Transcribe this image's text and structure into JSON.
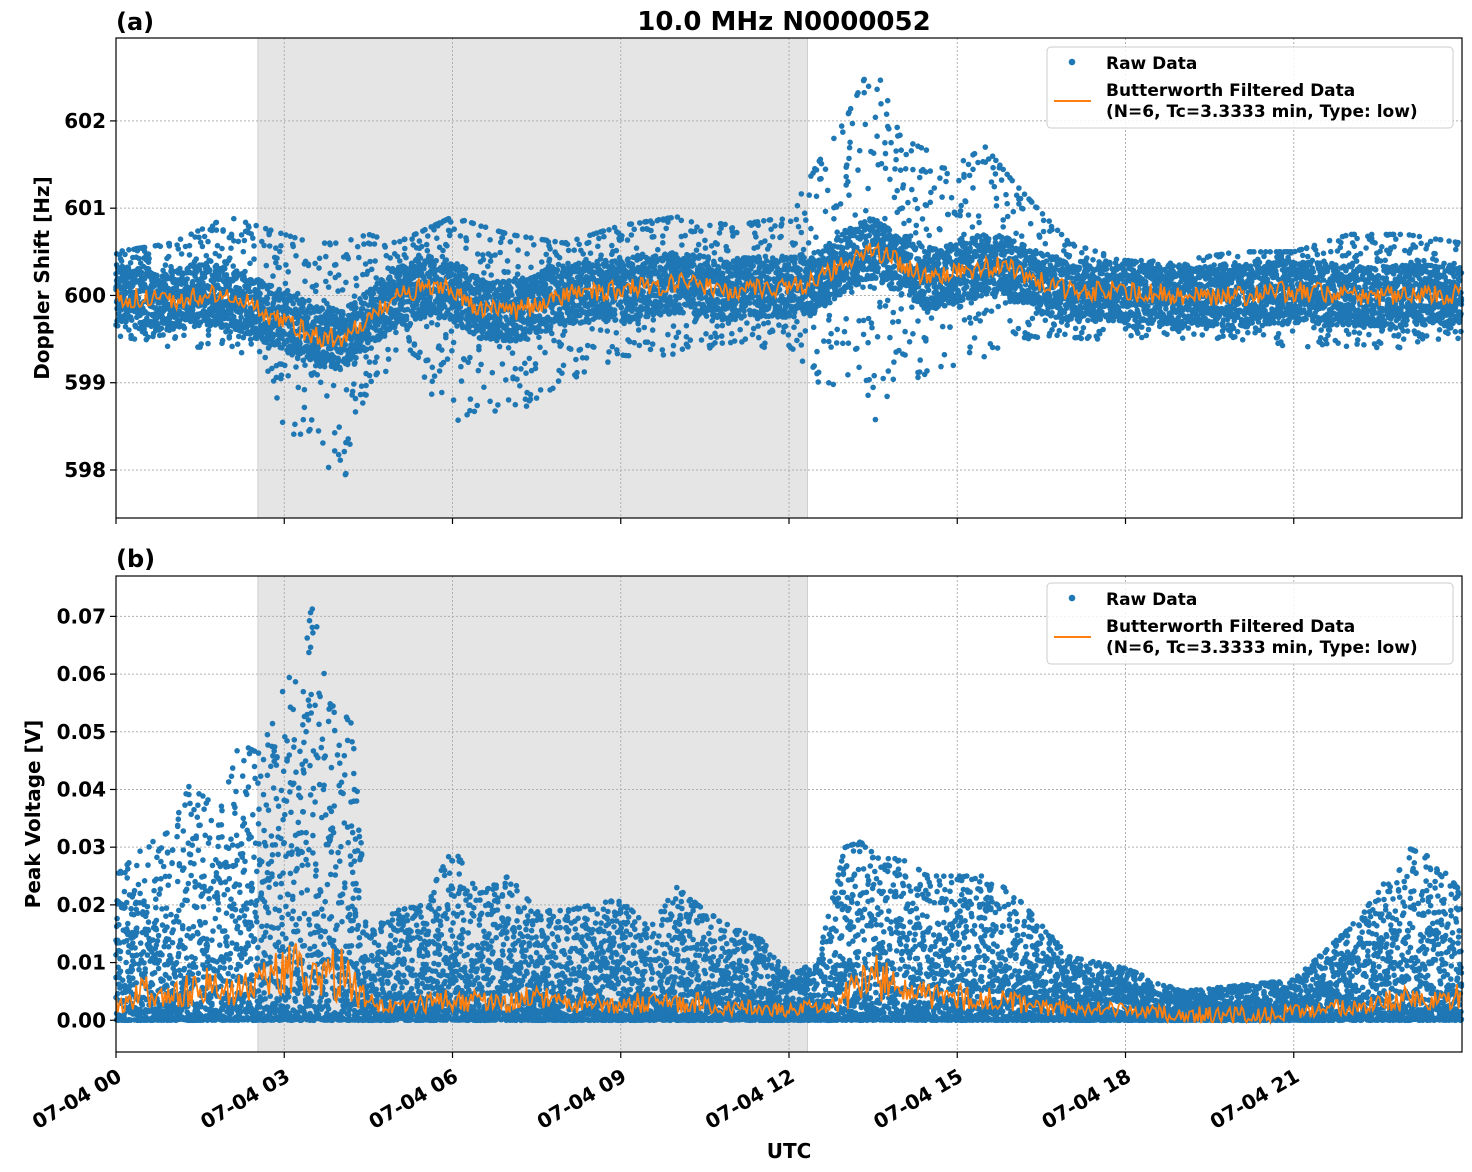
{
  "figure": {
    "title": "10.0 MHz N0000052",
    "xlabel": "UTC",
    "x_tick_labels": [
      "07-04 00",
      "07-04 03",
      "07-04 06",
      "07-04 09",
      "07-04 12",
      "07-04 15",
      "07-04 18",
      "07-04 21"
    ]
  },
  "colors": {
    "raw": "#1f77b4",
    "filtered": "#ff7f0e",
    "shade": "#e5e5e5",
    "grid": "#b0b0b0"
  },
  "chart_data": [
    {
      "type": "scatter",
      "panel_label": "(a)",
      "ylabel": "Doppler Shift [Hz]",
      "x_unit": "hours UTC on 07-04",
      "xlim": [
        0,
        24
      ],
      "ylim": [
        597.45,
        602.95
      ],
      "yticks": [
        598,
        599,
        600,
        601,
        602
      ],
      "grid": true,
      "legend_position": "top-right",
      "shaded_interval_hours": [
        2.53,
        12.33
      ],
      "series": [
        {
          "name": "Raw Data",
          "type": "scatter",
          "envelope_x": [
            0,
            1,
            2,
            2.5,
            3,
            3.5,
            4,
            4.5,
            5,
            6,
            6.5,
            7,
            8,
            9,
            10,
            11,
            12,
            12.5,
            13,
            13.5,
            14,
            15,
            15.5,
            16,
            17,
            18,
            19,
            20,
            21,
            22,
            23,
            24
          ],
          "envelope_low": [
            599.5,
            599.4,
            599.4,
            599.2,
            598.5,
            598.2,
            597.7,
            598.8,
            599.3,
            598.5,
            598.7,
            598.6,
            599.0,
            599.3,
            599.3,
            599.4,
            599.4,
            599.0,
            598.8,
            598.5,
            599.0,
            599.2,
            599.3,
            599.5,
            599.5,
            599.5,
            599.5,
            599.5,
            599.4,
            599.4,
            599.4,
            599.5
          ],
          "envelope_high": [
            600.5,
            600.6,
            600.9,
            600.8,
            600.7,
            600.6,
            600.6,
            600.7,
            600.6,
            600.9,
            600.8,
            600.7,
            600.6,
            600.8,
            600.9,
            600.8,
            600.9,
            601.5,
            602.0,
            602.7,
            601.8,
            601.5,
            601.7,
            601.3,
            600.6,
            600.4,
            600.4,
            600.5,
            600.5,
            600.7,
            600.7,
            600.6
          ]
        },
        {
          "name": "Butterworth Filtered Data\n(N=6, Tc=3.3333 min, Type: low)",
          "type": "line",
          "x": [
            0,
            0.5,
            1,
            1.5,
            2,
            2.5,
            3,
            3.5,
            4,
            4.5,
            5,
            5.5,
            6,
            6.5,
            7,
            7.5,
            8,
            8.5,
            9,
            9.5,
            10,
            10.5,
            11,
            11.5,
            12,
            12.5,
            13,
            13.5,
            14,
            14.5,
            15,
            15.5,
            16,
            16.5,
            17,
            18,
            19,
            20,
            21,
            22,
            23,
            24
          ],
          "y": [
            600.0,
            599.95,
            599.95,
            600.0,
            600.0,
            599.85,
            599.7,
            599.55,
            599.5,
            599.7,
            600.0,
            600.1,
            600.05,
            599.85,
            599.8,
            599.9,
            600.0,
            600.05,
            600.05,
            600.1,
            600.15,
            600.1,
            600.05,
            600.1,
            600.1,
            600.15,
            600.4,
            600.55,
            600.35,
            600.2,
            600.25,
            600.35,
            600.3,
            600.15,
            600.05,
            600.05,
            600.0,
            600.0,
            600.05,
            600.0,
            600.0,
            600.0
          ]
        }
      ]
    },
    {
      "type": "scatter",
      "panel_label": "(b)",
      "ylabel": "Peak Voltage [V]",
      "x_unit": "hours UTC on 07-04",
      "xlim": [
        0,
        24
      ],
      "ylim": [
        -0.0055,
        0.077
      ],
      "yticks": [
        0.0,
        0.01,
        0.02,
        0.03,
        0.04,
        0.05,
        0.06,
        0.07
      ],
      "ytick_labels": [
        "0.00",
        "0.01",
        "0.02",
        "0.03",
        "0.04",
        "0.05",
        "0.06",
        "0.07"
      ],
      "grid": true,
      "legend_position": "top-right",
      "shaded_interval_hours": [
        2.53,
        12.33
      ],
      "series": [
        {
          "name": "Raw Data",
          "type": "scatter",
          "envelope_x": [
            0,
            0.5,
            1,
            1.4,
            1.8,
            2.2,
            2.6,
            3.0,
            3.3,
            3.5,
            3.8,
            4.2,
            4.5,
            5,
            5.5,
            6,
            6.5,
            7,
            7.5,
            8,
            8.5,
            9,
            9.5,
            10,
            10.5,
            11,
            11.5,
            12,
            12.5,
            13,
            13.3,
            13.6,
            14,
            14.5,
            15,
            15.5,
            16,
            17,
            18,
            19,
            20,
            21,
            22,
            22.5,
            23,
            23.5,
            24
          ],
          "envelope_high": [
            0.025,
            0.03,
            0.033,
            0.043,
            0.035,
            0.048,
            0.046,
            0.06,
            0.058,
            0.073,
            0.055,
            0.052,
            0.015,
            0.019,
            0.02,
            0.03,
            0.022,
            0.025,
            0.019,
            0.019,
            0.02,
            0.021,
            0.016,
            0.023,
            0.019,
            0.016,
            0.014,
            0.008,
            0.01,
            0.03,
            0.031,
            0.028,
            0.028,
            0.025,
            0.025,
            0.025,
            0.022,
            0.011,
            0.009,
            0.005,
            0.006,
            0.007,
            0.016,
            0.022,
            0.03,
            0.028,
            0.022
          ]
        },
        {
          "name": "Butterworth Filtered Data\n(N=6, Tc=3.3333 min, Type: low)",
          "type": "line",
          "x": [
            0,
            0.5,
            1,
            1.5,
            2,
            2.5,
            3,
            3.5,
            4,
            4.5,
            5,
            5.5,
            6,
            6.5,
            7,
            7.5,
            8,
            8.5,
            9,
            9.5,
            10,
            10.5,
            11,
            11.5,
            12,
            12.5,
            13,
            13.5,
            14,
            14.5,
            15,
            15.5,
            16,
            16.5,
            17,
            17.5,
            18,
            18.5,
            19,
            19.5,
            20,
            20.5,
            21,
            21.5,
            22,
            22.5,
            23,
            23.5,
            24
          ],
          "y": [
            0.003,
            0.005,
            0.004,
            0.006,
            0.005,
            0.006,
            0.008,
            0.009,
            0.008,
            0.003,
            0.002,
            0.003,
            0.004,
            0.003,
            0.003,
            0.004,
            0.003,
            0.003,
            0.003,
            0.003,
            0.003,
            0.003,
            0.002,
            0.002,
            0.002,
            0.002,
            0.004,
            0.008,
            0.005,
            0.004,
            0.004,
            0.004,
            0.003,
            0.002,
            0.002,
            0.002,
            0.0015,
            0.0015,
            0.001,
            0.001,
            0.001,
            0.001,
            0.0015,
            0.002,
            0.002,
            0.003,
            0.004,
            0.004,
            0.004
          ]
        }
      ]
    }
  ]
}
